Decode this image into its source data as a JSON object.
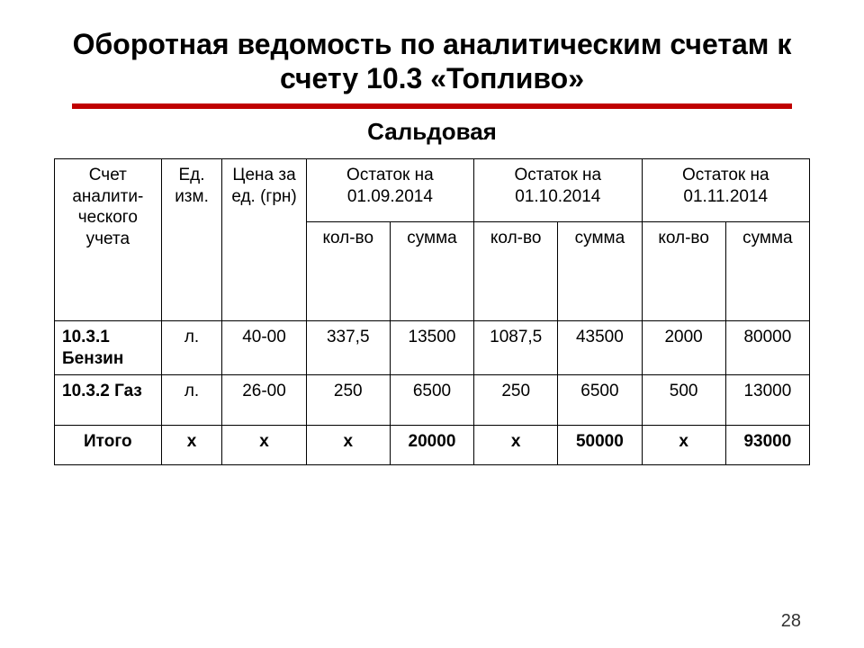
{
  "title": "Оборотная ведомость по аналитическим счетам к счету 10.3 «Топливо»",
  "subtitle": "Сальдовая",
  "page_number": "28",
  "table": {
    "headers": {
      "account": "Счет аналити-ческого учета",
      "unit": "Ед. изм.",
      "price": "Цена за ед. (грн)",
      "period1": "Остаток на 01.09.2014",
      "period2": "Остаток на 01.10.2014",
      "period3": "Остаток на 01.11.2014",
      "qty": "кол-во",
      "sum": "сумма"
    },
    "rows": [
      {
        "account": "10.3.1 Бензин",
        "unit": "л.",
        "price": "40-00",
        "q1": "337,5",
        "s1": "13500",
        "q2": "1087,5",
        "s2": "43500",
        "q3": "2000",
        "s3": "80000"
      },
      {
        "account": "10.3.2 Газ",
        "unit": "л.",
        "price": "26-00",
        "q1": "250",
        "s1": "6500",
        "q2": "250",
        "s2": "6500",
        "q3": "500",
        "s3": "13000"
      }
    ],
    "total": {
      "label": "Итого",
      "unit": "х",
      "price": "х",
      "q1": "х",
      "s1": "20000",
      "q2": "х",
      "s2": "50000",
      "q3": "х",
      "s3": "93000"
    }
  },
  "style": {
    "accent_color": "#c00000",
    "border_color": "#000000",
    "background_color": "#ffffff",
    "title_fontsize": 32,
    "subtitle_fontsize": 26,
    "cell_fontsize": 19,
    "font_family": "Verdana"
  }
}
